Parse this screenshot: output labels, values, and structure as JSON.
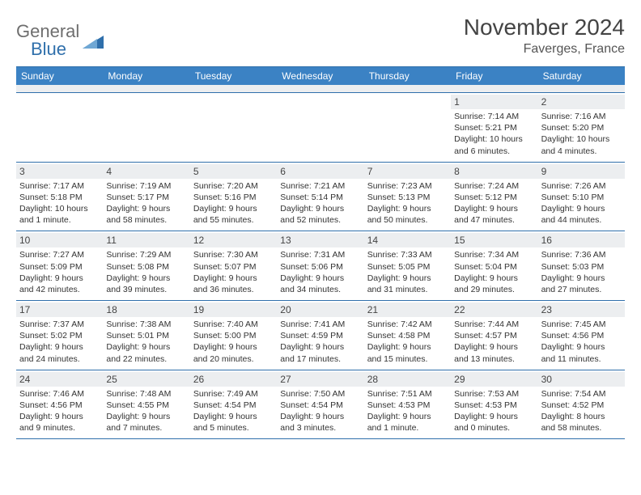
{
  "logo": {
    "general": "General",
    "blue": "Blue"
  },
  "header": {
    "title": "November 2024",
    "location": "Faverges, France"
  },
  "colors": {
    "header_bg": "#3b82c4",
    "rule": "#2f6fab",
    "daynum_bg": "#eceef0",
    "text": "#333333"
  },
  "dayNames": [
    "Sunday",
    "Monday",
    "Tuesday",
    "Wednesday",
    "Thursday",
    "Friday",
    "Saturday"
  ],
  "weeks": [
    [
      {
        "blank": true
      },
      {
        "blank": true
      },
      {
        "blank": true
      },
      {
        "blank": true
      },
      {
        "blank": true
      },
      {
        "day": "1",
        "sunrise": "Sunrise: 7:14 AM",
        "sunset": "Sunset: 5:21 PM",
        "daylight1": "Daylight: 10 hours",
        "daylight2": "and 6 minutes."
      },
      {
        "day": "2",
        "sunrise": "Sunrise: 7:16 AM",
        "sunset": "Sunset: 5:20 PM",
        "daylight1": "Daylight: 10 hours",
        "daylight2": "and 4 minutes."
      }
    ],
    [
      {
        "day": "3",
        "sunrise": "Sunrise: 7:17 AM",
        "sunset": "Sunset: 5:18 PM",
        "daylight1": "Daylight: 10 hours",
        "daylight2": "and 1 minute."
      },
      {
        "day": "4",
        "sunrise": "Sunrise: 7:19 AM",
        "sunset": "Sunset: 5:17 PM",
        "daylight1": "Daylight: 9 hours",
        "daylight2": "and 58 minutes."
      },
      {
        "day": "5",
        "sunrise": "Sunrise: 7:20 AM",
        "sunset": "Sunset: 5:16 PM",
        "daylight1": "Daylight: 9 hours",
        "daylight2": "and 55 minutes."
      },
      {
        "day": "6",
        "sunrise": "Sunrise: 7:21 AM",
        "sunset": "Sunset: 5:14 PM",
        "daylight1": "Daylight: 9 hours",
        "daylight2": "and 52 minutes."
      },
      {
        "day": "7",
        "sunrise": "Sunrise: 7:23 AM",
        "sunset": "Sunset: 5:13 PM",
        "daylight1": "Daylight: 9 hours",
        "daylight2": "and 50 minutes."
      },
      {
        "day": "8",
        "sunrise": "Sunrise: 7:24 AM",
        "sunset": "Sunset: 5:12 PM",
        "daylight1": "Daylight: 9 hours",
        "daylight2": "and 47 minutes."
      },
      {
        "day": "9",
        "sunrise": "Sunrise: 7:26 AM",
        "sunset": "Sunset: 5:10 PM",
        "daylight1": "Daylight: 9 hours",
        "daylight2": "and 44 minutes."
      }
    ],
    [
      {
        "day": "10",
        "sunrise": "Sunrise: 7:27 AM",
        "sunset": "Sunset: 5:09 PM",
        "daylight1": "Daylight: 9 hours",
        "daylight2": "and 42 minutes."
      },
      {
        "day": "11",
        "sunrise": "Sunrise: 7:29 AM",
        "sunset": "Sunset: 5:08 PM",
        "daylight1": "Daylight: 9 hours",
        "daylight2": "and 39 minutes."
      },
      {
        "day": "12",
        "sunrise": "Sunrise: 7:30 AM",
        "sunset": "Sunset: 5:07 PM",
        "daylight1": "Daylight: 9 hours",
        "daylight2": "and 36 minutes."
      },
      {
        "day": "13",
        "sunrise": "Sunrise: 7:31 AM",
        "sunset": "Sunset: 5:06 PM",
        "daylight1": "Daylight: 9 hours",
        "daylight2": "and 34 minutes."
      },
      {
        "day": "14",
        "sunrise": "Sunrise: 7:33 AM",
        "sunset": "Sunset: 5:05 PM",
        "daylight1": "Daylight: 9 hours",
        "daylight2": "and 31 minutes."
      },
      {
        "day": "15",
        "sunrise": "Sunrise: 7:34 AM",
        "sunset": "Sunset: 5:04 PM",
        "daylight1": "Daylight: 9 hours",
        "daylight2": "and 29 minutes."
      },
      {
        "day": "16",
        "sunrise": "Sunrise: 7:36 AM",
        "sunset": "Sunset: 5:03 PM",
        "daylight1": "Daylight: 9 hours",
        "daylight2": "and 27 minutes."
      }
    ],
    [
      {
        "day": "17",
        "sunrise": "Sunrise: 7:37 AM",
        "sunset": "Sunset: 5:02 PM",
        "daylight1": "Daylight: 9 hours",
        "daylight2": "and 24 minutes."
      },
      {
        "day": "18",
        "sunrise": "Sunrise: 7:38 AM",
        "sunset": "Sunset: 5:01 PM",
        "daylight1": "Daylight: 9 hours",
        "daylight2": "and 22 minutes."
      },
      {
        "day": "19",
        "sunrise": "Sunrise: 7:40 AM",
        "sunset": "Sunset: 5:00 PM",
        "daylight1": "Daylight: 9 hours",
        "daylight2": "and 20 minutes."
      },
      {
        "day": "20",
        "sunrise": "Sunrise: 7:41 AM",
        "sunset": "Sunset: 4:59 PM",
        "daylight1": "Daylight: 9 hours",
        "daylight2": "and 17 minutes."
      },
      {
        "day": "21",
        "sunrise": "Sunrise: 7:42 AM",
        "sunset": "Sunset: 4:58 PM",
        "daylight1": "Daylight: 9 hours",
        "daylight2": "and 15 minutes."
      },
      {
        "day": "22",
        "sunrise": "Sunrise: 7:44 AM",
        "sunset": "Sunset: 4:57 PM",
        "daylight1": "Daylight: 9 hours",
        "daylight2": "and 13 minutes."
      },
      {
        "day": "23",
        "sunrise": "Sunrise: 7:45 AM",
        "sunset": "Sunset: 4:56 PM",
        "daylight1": "Daylight: 9 hours",
        "daylight2": "and 11 minutes."
      }
    ],
    [
      {
        "day": "24",
        "sunrise": "Sunrise: 7:46 AM",
        "sunset": "Sunset: 4:56 PM",
        "daylight1": "Daylight: 9 hours",
        "daylight2": "and 9 minutes."
      },
      {
        "day": "25",
        "sunrise": "Sunrise: 7:48 AM",
        "sunset": "Sunset: 4:55 PM",
        "daylight1": "Daylight: 9 hours",
        "daylight2": "and 7 minutes."
      },
      {
        "day": "26",
        "sunrise": "Sunrise: 7:49 AM",
        "sunset": "Sunset: 4:54 PM",
        "daylight1": "Daylight: 9 hours",
        "daylight2": "and 5 minutes."
      },
      {
        "day": "27",
        "sunrise": "Sunrise: 7:50 AM",
        "sunset": "Sunset: 4:54 PM",
        "daylight1": "Daylight: 9 hours",
        "daylight2": "and 3 minutes."
      },
      {
        "day": "28",
        "sunrise": "Sunrise: 7:51 AM",
        "sunset": "Sunset: 4:53 PM",
        "daylight1": "Daylight: 9 hours",
        "daylight2": "and 1 minute."
      },
      {
        "day": "29",
        "sunrise": "Sunrise: 7:53 AM",
        "sunset": "Sunset: 4:53 PM",
        "daylight1": "Daylight: 9 hours",
        "daylight2": "and 0 minutes."
      },
      {
        "day": "30",
        "sunrise": "Sunrise: 7:54 AM",
        "sunset": "Sunset: 4:52 PM",
        "daylight1": "Daylight: 8 hours",
        "daylight2": "and 58 minutes."
      }
    ]
  ]
}
